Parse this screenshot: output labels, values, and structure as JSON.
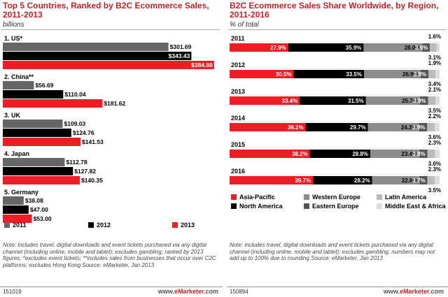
{
  "chart_data": [
    {
      "type": "bar",
      "title": "Top 5 Countries, Ranked by B2C Ecommerce Sales,\n2011-2013",
      "subtitle": "billions",
      "categories": [
        "1. US*",
        "2. China**",
        "3. UK",
        "4. Japan",
        "5. Germany"
      ],
      "series": [
        {
          "name": "2011",
          "color": "#666666",
          "values": [
            301.69,
            56.69,
            109.03,
            112.78,
            38.08
          ],
          "labels": [
            "$301.69",
            "$56.69",
            "$109.03",
            "$112.78",
            "$38.08"
          ]
        },
        {
          "name": "2012",
          "color": "#000000",
          "values": [
            343.43,
            110.04,
            124.76,
            127.82,
            47.0
          ],
          "labels": [
            "$343.43",
            "$110.04",
            "$124.76",
            "$127.82",
            "$47.00"
          ]
        },
        {
          "name": "2013",
          "color": "#ee1c25",
          "values": [
            384.8,
            181.62,
            141.53,
            140.35,
            53.0
          ],
          "labels": [
            "$384.80",
            "$181.62",
            "$141.53",
            "$140.35",
            "$53.00"
          ]
        }
      ],
      "xlim": [
        0,
        385
      ],
      "note": "Note: includes travel, digital downloads and event tickets purchased via any digital channel (including online, mobile and tablet); excludes gambling; ranked by 2013 figures; *excludes event tickets; **includes sales from businesses that occur over C2C platforms; excludes Hong Kong\nSource: eMarketer, Jan 2013",
      "id": "151019"
    },
    {
      "type": "bar",
      "stacked": true,
      "title": "B2C Ecommerce Sales Share Worldwide, by Region,\n2011-2016",
      "subtitle": "% of total",
      "categories": [
        "2011",
        "2012",
        "2013",
        "2014",
        "2015",
        "2016"
      ],
      "series": [
        {
          "name": "Asia-Pacific",
          "color": "#ee1c25",
          "values": [
            27.9,
            30.5,
            33.4,
            36.2,
            38.2,
            39.7
          ],
          "labels": [
            "27.9%",
            "30.5%",
            "33.4%",
            "36.2%",
            "38.2%",
            "39.7%"
          ]
        },
        {
          "name": "North America",
          "color": "#000000",
          "values": [
            35.9,
            33.5,
            31.5,
            29.7,
            28.8,
            28.2
          ],
          "labels": [
            "35.9%",
            "33.5%",
            "31.5%",
            "29.7%",
            "28.8%",
            "28.2%"
          ]
        },
        {
          "name": "Western Europe",
          "color": "#8c8c8c",
          "values": [
            28.0,
            26.9,
            25.7,
            24.3,
            23.4,
            22.6
          ],
          "labels": [
            "28.0%",
            "26.9%",
            "25.7%",
            "24.3%",
            "23.4%",
            "22.6%"
          ]
        },
        {
          "name": "Eastern Europe",
          "color": "#555555",
          "values": [
            3.6,
            3.8,
            3.9,
            3.9,
            3.8,
            3.7
          ],
          "labels": [
            "3.6%",
            "3.8%",
            "3.9%",
            "3.9%",
            "3.8%",
            "3.7%"
          ]
        },
        {
          "name": "Latin America",
          "color": "#bbbbbb",
          "values": [
            3.1,
            3.4,
            3.5,
            3.6,
            3.6,
            3.5
          ],
          "labels": [
            "3.1%",
            "3.4%",
            "3.5%",
            "3.6%",
            "3.6%",
            "3.5%"
          ]
        },
        {
          "name": "Middle East & Africa",
          "color": "#dddddd",
          "values": [
            1.6,
            1.9,
            2.1,
            2.2,
            2.3,
            2.3
          ],
          "labels": [
            "1.6%",
            "1.9%",
            "2.1%",
            "2.2%",
            "2.3%",
            "2.3%"
          ]
        }
      ],
      "xlim": [
        0,
        100
      ],
      "note": "Note: includes travel, digital downloads and event tickets purchased via any digital channel (including online, mobile and tablet); excludes gambling; numbers may not add up to 100% due to rounding\nSource: eMarketer, Jan 2013",
      "id": "150894"
    }
  ],
  "brand": {
    "prefix": "www.",
    "name": "eMarketer",
    "suffix": ".com"
  }
}
